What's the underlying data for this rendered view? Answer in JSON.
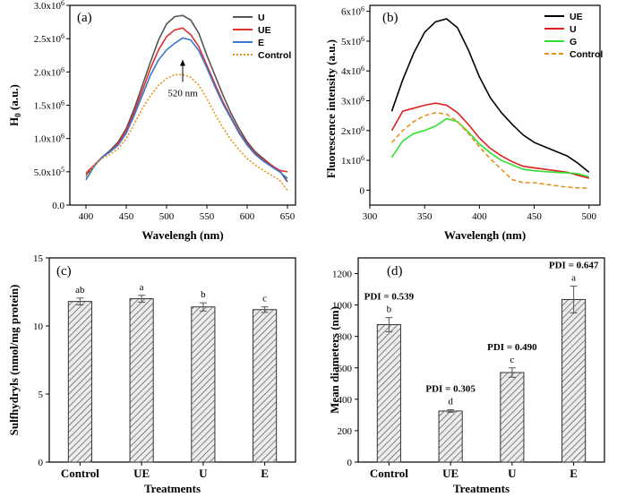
{
  "chart_data": [
    {
      "panel": "(a)",
      "type": "line",
      "xlabel": "Wavelengh (nm)",
      "ylabel": "H0 (a.u.)",
      "xlim": [
        380,
        660
      ],
      "ylim": [
        0,
        3000000
      ],
      "xticks": [
        400,
        450,
        500,
        550,
        600,
        650
      ],
      "ytick_labels": [
        "0.0",
        "5.0x10^5",
        "1.0x10^6",
        "1.5x10^6",
        "2.0x10^6",
        "2.5x10^6",
        "3.0x10^6"
      ],
      "ytick_values": [
        0,
        500000,
        1000000,
        1500000,
        2000000,
        2500000,
        3000000
      ],
      "annotation": {
        "text": "520 nm",
        "x": 520,
        "y": 1850000
      },
      "series": [
        {
          "name": "U",
          "color": "#555555",
          "dash": "",
          "x": [
            400,
            410,
            420,
            430,
            440,
            450,
            460,
            470,
            480,
            490,
            500,
            510,
            520,
            530,
            540,
            550,
            560,
            570,
            580,
            590,
            600,
            610,
            620,
            630,
            640,
            650
          ],
          "y": [
            450000,
            580000,
            720000,
            820000,
            950000,
            1150000,
            1450000,
            1800000,
            2150000,
            2480000,
            2720000,
            2830000,
            2850000,
            2780000,
            2580000,
            2250000,
            1950000,
            1650000,
            1380000,
            1150000,
            950000,
            800000,
            700000,
            600000,
            520000,
            350000
          ]
        },
        {
          "name": "UE",
          "color": "#e03030",
          "dash": "",
          "x": [
            400,
            410,
            420,
            430,
            440,
            450,
            460,
            470,
            480,
            490,
            500,
            510,
            520,
            530,
            540,
            550,
            560,
            570,
            580,
            590,
            600,
            610,
            620,
            630,
            640,
            650
          ],
          "y": [
            480000,
            600000,
            720000,
            800000,
            930000,
            1120000,
            1400000,
            1720000,
            2050000,
            2330000,
            2530000,
            2630000,
            2660000,
            2560000,
            2380000,
            2100000,
            1820000,
            1550000,
            1320000,
            1100000,
            920000,
            780000,
            680000,
            600000,
            520000,
            500000
          ]
        },
        {
          "name": "E",
          "color": "#3a78d0",
          "dash": "",
          "x": [
            400,
            410,
            420,
            430,
            440,
            450,
            460,
            470,
            480,
            490,
            500,
            510,
            520,
            530,
            540,
            550,
            560,
            570,
            580,
            590,
            600,
            610,
            620,
            630,
            640,
            650
          ],
          "y": [
            380000,
            580000,
            720000,
            800000,
            900000,
            1080000,
            1350000,
            1650000,
            1950000,
            2180000,
            2330000,
            2430000,
            2510000,
            2480000,
            2320000,
            2060000,
            1780000,
            1520000,
            1300000,
            1080000,
            900000,
            760000,
            660000,
            580000,
            500000,
            400000
          ]
        },
        {
          "name": "Control",
          "color": "#e8901a",
          "dash": "2,2",
          "x": [
            400,
            410,
            420,
            430,
            440,
            450,
            460,
            470,
            480,
            490,
            500,
            510,
            520,
            530,
            540,
            550,
            560,
            570,
            580,
            590,
            600,
            610,
            620,
            630,
            640,
            650
          ],
          "y": [
            420000,
            600000,
            700000,
            760000,
            850000,
            1000000,
            1220000,
            1450000,
            1640000,
            1800000,
            1900000,
            1960000,
            1960000,
            1920000,
            1800000,
            1600000,
            1370000,
            1160000,
            980000,
            830000,
            700000,
            600000,
            520000,
            450000,
            380000,
            220000
          ]
        }
      ]
    },
    {
      "panel": "(b)",
      "type": "line",
      "xlabel": "Wavelengh (nm)",
      "ylabel": "Fluorescence intensity (a.u.)",
      "xlim": [
        300,
        510
      ],
      "ylim": [
        -500000,
        6200000
      ],
      "xticks": [
        300,
        350,
        400,
        450,
        500
      ],
      "ytick_labels": [
        "0",
        "1x10^6",
        "2x10^6",
        "3x10^6",
        "4x10^6",
        "5x10^6",
        "6x10^6"
      ],
      "ytick_values": [
        0,
        1000000,
        2000000,
        3000000,
        4000000,
        5000000,
        6000000
      ],
      "series": [
        {
          "name": "UE",
          "color": "#000000",
          "dash": "",
          "x": [
            320,
            330,
            340,
            350,
            360,
            370,
            380,
            390,
            400,
            410,
            420,
            430,
            440,
            450,
            460,
            470,
            480,
            490,
            500
          ],
          "y": [
            2650000,
            3700000,
            4600000,
            5300000,
            5650000,
            5750000,
            5450000,
            4700000,
            3800000,
            3100000,
            2600000,
            2200000,
            1850000,
            1600000,
            1450000,
            1300000,
            1150000,
            900000,
            600000
          ]
        },
        {
          "name": "U",
          "color": "#e02020",
          "dash": "",
          "x": [
            320,
            330,
            340,
            350,
            360,
            370,
            380,
            390,
            400,
            410,
            420,
            430,
            440,
            450,
            460,
            470,
            480,
            490,
            500
          ],
          "y": [
            2000000,
            2650000,
            2750000,
            2850000,
            2920000,
            2850000,
            2600000,
            2200000,
            1750000,
            1400000,
            1150000,
            950000,
            800000,
            750000,
            700000,
            650000,
            600000,
            500000,
            400000
          ]
        },
        {
          "name": "G",
          "color": "#30e030",
          "dash": "",
          "x": [
            320,
            330,
            340,
            350,
            360,
            370,
            380,
            390,
            400,
            410,
            420,
            430,
            440,
            450,
            460,
            470,
            480,
            490,
            500
          ],
          "y": [
            1100000,
            1650000,
            1900000,
            2000000,
            2150000,
            2400000,
            2300000,
            1950000,
            1550000,
            1250000,
            1000000,
            850000,
            700000,
            650000,
            620000,
            600000,
            580000,
            550000,
            450000
          ]
        },
        {
          "name": "Control",
          "color": "#e8901a",
          "dash": "5,3",
          "x": [
            320,
            330,
            340,
            350,
            360,
            370,
            380,
            390,
            400,
            410,
            420,
            430,
            440,
            450,
            460,
            470,
            480,
            490,
            500
          ],
          "y": [
            1600000,
            2000000,
            2300000,
            2500000,
            2600000,
            2550000,
            2300000,
            1900000,
            1450000,
            1050000,
            700000,
            350000,
            250000,
            250000,
            200000,
            150000,
            100000,
            80000,
            60000
          ]
        }
      ]
    },
    {
      "panel": "(c)",
      "type": "bar",
      "xlabel": "Treatments",
      "ylabel": "Sulfhydryls (nmol/mg  protein)",
      "ylim": [
        0,
        15
      ],
      "yticks": [
        0,
        5,
        10,
        15
      ],
      "categories": [
        "Control",
        "UE",
        "U",
        "E"
      ],
      "values": [
        11.8,
        12.0,
        11.4,
        11.2
      ],
      "errors": [
        0.25,
        0.25,
        0.3,
        0.2
      ],
      "letters": [
        "ab",
        "a",
        "b",
        "c"
      ]
    },
    {
      "panel": "(d)",
      "type": "bar",
      "xlabel": "Treatments",
      "ylabel": "Mean diameters (nm)",
      "ylim": [
        0,
        1300
      ],
      "yticks": [
        0,
        200,
        400,
        600,
        800,
        1000,
        1200
      ],
      "categories": [
        "Control",
        "UE",
        "U",
        "E"
      ],
      "values": [
        875,
        325,
        570,
        1035
      ],
      "errors": [
        45,
        8,
        30,
        85
      ],
      "letters": [
        "b",
        "d",
        "c",
        "a"
      ],
      "pdi": [
        "PDI = 0.539",
        "PDI = 0.305",
        "PDI = 0.490",
        "PDI = 0.647"
      ]
    }
  ]
}
